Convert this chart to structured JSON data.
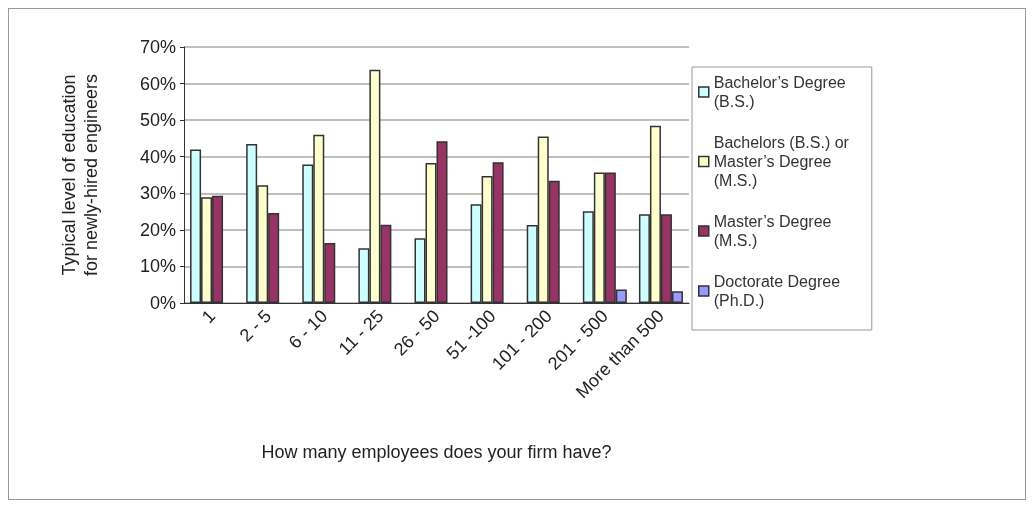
{
  "chart_data": {
    "type": "bar",
    "xlabel": "How many employees does your firm have?",
    "ylabel": "Typical level of education\nfor newly-hired engineers",
    "categories": [
      "1",
      "2 - 5",
      "6 - 10",
      "11 - 25",
      "26 - 50",
      "51 -100",
      "101 - 200",
      "201 - 500",
      "More than 500"
    ],
    "series": [
      {
        "name": "Bachelor’s Degree (B.S.)",
        "color": "#ccffff",
        "values": [
          42,
          43.5,
          37.9,
          15,
          17.7,
          27,
          21.3,
          25.1,
          24.3
        ]
      },
      {
        "name": "Bachelors (B.S.) or Master’s Degree (M.S.)",
        "color": "#ffffcc",
        "values": [
          28.9,
          32.2,
          46,
          63.8,
          38.3,
          34.7,
          45.5,
          35.7,
          48.5
        ]
      },
      {
        "name": "Master’s Degree (M.S.)",
        "color": "#993366",
        "values": [
          29.3,
          24.6,
          16.4,
          21.4,
          44.2,
          38.5,
          33.4,
          35.7,
          24.3
        ]
      },
      {
        "name": "Doctorate Degree (Ph.D.)",
        "color": "#9999ff",
        "values": [
          null,
          null,
          null,
          null,
          null,
          null,
          null,
          3.7,
          3.2
        ]
      }
    ],
    "ylim": [
      0,
      70
    ],
    "yticks": [
      {
        "value": 0,
        "label": "0%"
      },
      {
        "value": 10,
        "label": "10%"
      },
      {
        "value": 20,
        "label": "20%"
      },
      {
        "value": 30,
        "label": "30%"
      },
      {
        "value": 40,
        "label": "40%"
      },
      {
        "value": 50,
        "label": "50%"
      },
      {
        "value": 60,
        "label": "60%"
      },
      {
        "value": 70,
        "label": "70%"
      }
    ],
    "grid": "y",
    "legend": "right"
  }
}
